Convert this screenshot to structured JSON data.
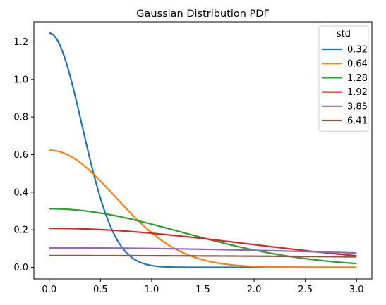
{
  "chart_data": {
    "type": "line",
    "title": "Gaussian Distribution PDF",
    "xlabel": "",
    "ylabel": "",
    "xlim": [
      -0.15,
      3.15
    ],
    "ylim": [
      -0.062,
      1.307
    ],
    "x_ticks": [
      "0.0",
      "0.5",
      "1.0",
      "1.5",
      "2.0",
      "2.5",
      "3.0"
    ],
    "y_ticks": [
      "0.0",
      "0.2",
      "0.4",
      "0.6",
      "0.8",
      "1.0",
      "1.2"
    ],
    "grid": false,
    "legend": {
      "title": "std",
      "placement": "top-right"
    },
    "x_range": [
      0,
      3
    ],
    "series": [
      {
        "name": "0.32",
        "std": 0.32,
        "color": "#1f77b4"
      },
      {
        "name": "0.64",
        "std": 0.64,
        "color": "#ff7f0e"
      },
      {
        "name": "1.28",
        "std": 1.28,
        "color": "#2ca02c"
      },
      {
        "name": "1.92",
        "std": 1.92,
        "color": "#d62728"
      },
      {
        "name": "3.85",
        "std": 3.85,
        "color": "#9467bd"
      },
      {
        "name": "6.41",
        "std": 6.41,
        "color": "#8c564b"
      }
    ]
  }
}
